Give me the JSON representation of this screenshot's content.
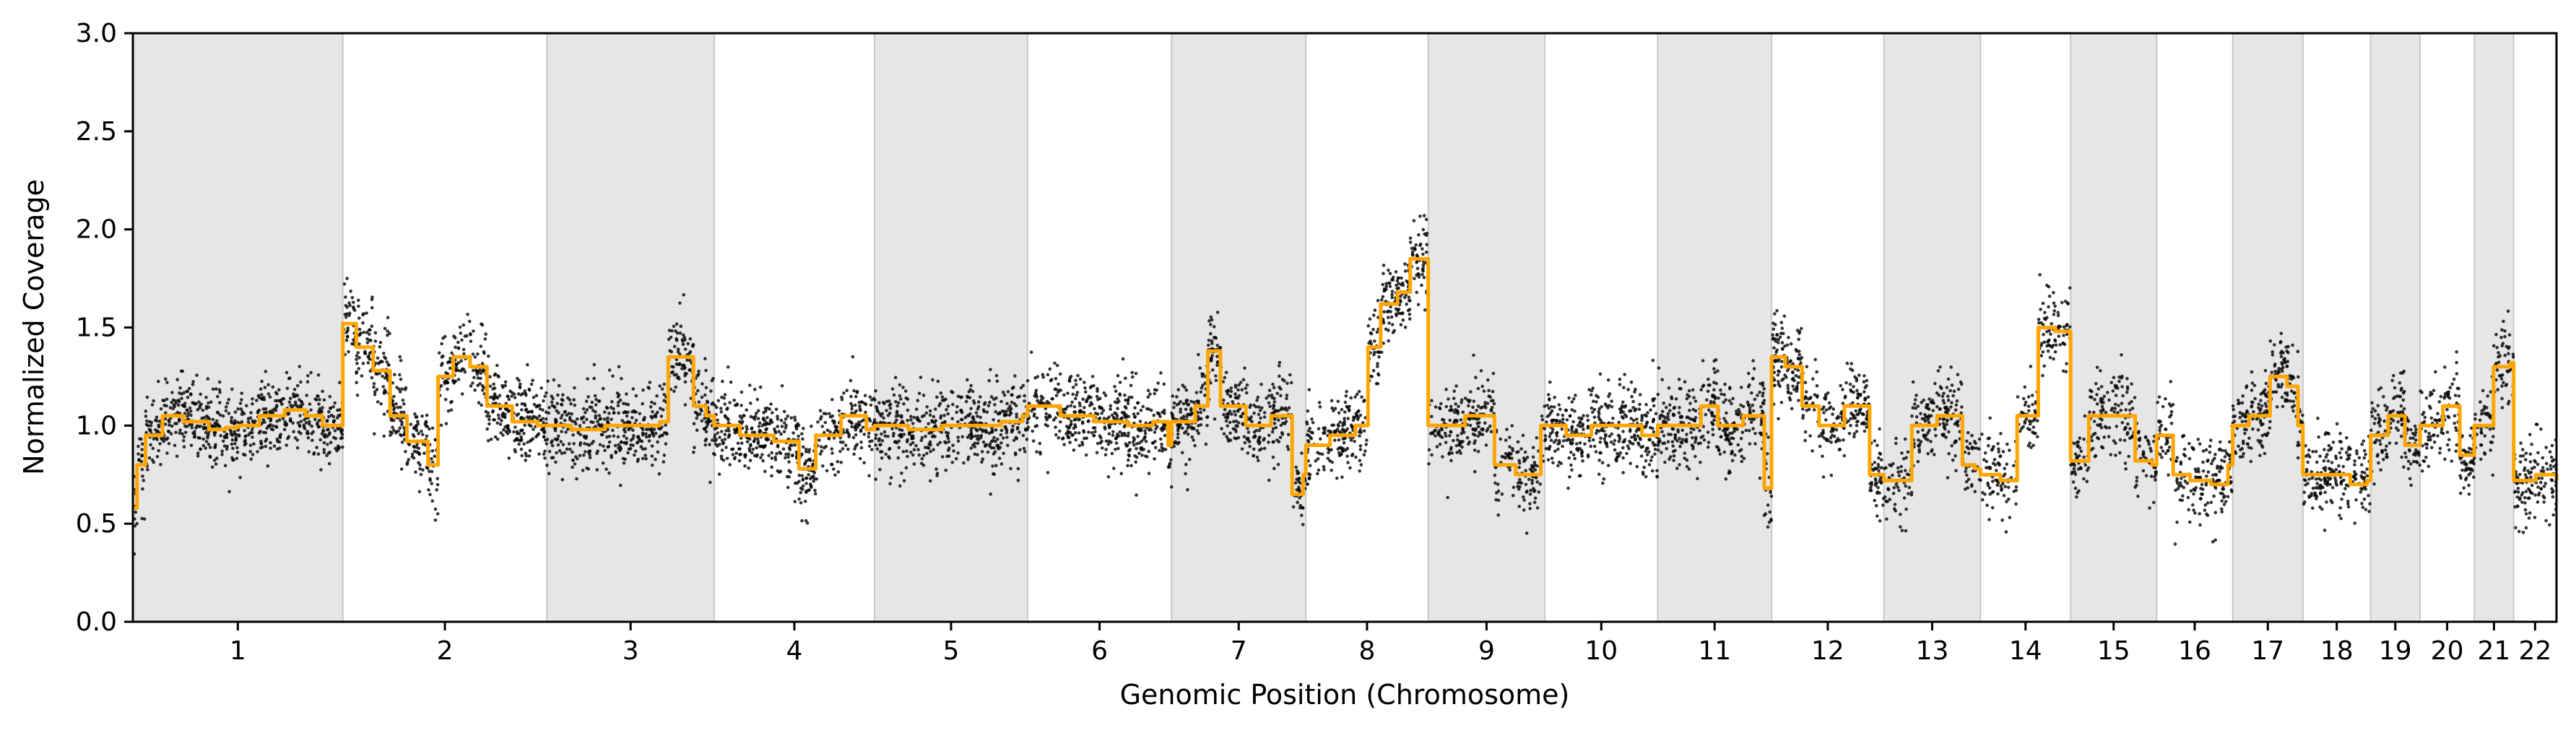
{
  "chart_data": {
    "type": "scatter",
    "title": "",
    "xlabel": "Genomic Position (Chromosome)",
    "ylabel": "Normalized Coverage",
    "ylim": [
      0.0,
      3.0
    ],
    "y_ticks": [
      "0.0",
      "0.5",
      "1.0",
      "1.5",
      "2.0",
      "2.5",
      "3.0"
    ],
    "chromosomes": [
      {
        "label": "1",
        "start": 0.0,
        "end": 249.0
      },
      {
        "label": "2",
        "start": 249.0,
        "end": 491.2
      },
      {
        "label": "3",
        "start": 491.2,
        "end": 689.5
      },
      {
        "label": "4",
        "start": 689.5,
        "end": 879.7
      },
      {
        "label": "5",
        "start": 879.7,
        "end": 1061.2
      },
      {
        "label": "6",
        "start": 1061.2,
        "end": 1232.0
      },
      {
        "label": "7",
        "start": 1232.0,
        "end": 1391.3
      },
      {
        "label": "8",
        "start": 1391.3,
        "end": 1536.4
      },
      {
        "label": "9",
        "start": 1536.4,
        "end": 1674.8
      },
      {
        "label": "10",
        "start": 1674.8,
        "end": 1808.6
      },
      {
        "label": "11",
        "start": 1808.6,
        "end": 1943.7
      },
      {
        "label": "12",
        "start": 1943.7,
        "end": 2077.0
      },
      {
        "label": "13",
        "start": 2077.0,
        "end": 2191.4
      },
      {
        "label": "14",
        "start": 2191.4,
        "end": 2298.4
      },
      {
        "label": "15",
        "start": 2298.4,
        "end": 2400.4
      },
      {
        "label": "16",
        "start": 2400.4,
        "end": 2490.7
      },
      {
        "label": "17",
        "start": 2490.7,
        "end": 2573.9
      },
      {
        "label": "18",
        "start": 2573.9,
        "end": 2654.2
      },
      {
        "label": "19",
        "start": 2654.2,
        "end": 2712.8
      },
      {
        "label": "20",
        "start": 2712.8,
        "end": 2777.2
      },
      {
        "label": "21",
        "start": 2777.2,
        "end": 2823.9
      },
      {
        "label": "22",
        "start": 2823.9,
        "end": 2874.7
      }
    ],
    "shading": "alternating grey bands on odd chromosomes",
    "series": [
      {
        "kind": "points",
        "color": "#000000",
        "spread": 0.17,
        "points_per_chromosome": [
          660,
          640,
          520,
          500,
          480,
          450,
          420,
          380,
          300,
          360,
          360,
          360,
          240,
          220,
          210,
          200,
          210,
          200,
          150,
          160,
          100,
          130
        ]
      },
      {
        "kind": "segments",
        "color": "#FFA500",
        "values": [
          [
            0.0,
            0.58
          ],
          [
            5.0,
            0.8
          ],
          [
            15.0,
            0.95
          ],
          [
            35.0,
            1.05
          ],
          [
            60.0,
            1.02
          ],
          [
            90.0,
            0.98
          ],
          [
            110.0,
            0.99
          ],
          [
            125.0,
            1.0
          ],
          [
            150.0,
            1.05
          ],
          [
            180.0,
            1.08
          ],
          [
            205.0,
            1.05
          ],
          [
            225.0,
            1.0
          ],
          [
            245.0,
            1.0
          ],
          [
            249.0,
            1.52
          ],
          [
            265.0,
            1.4
          ],
          [
            285.0,
            1.28
          ],
          [
            305.0,
            1.05
          ],
          [
            325.0,
            0.92
          ],
          [
            350.0,
            0.8
          ],
          [
            362.0,
            1.25
          ],
          [
            380.0,
            1.35
          ],
          [
            400.0,
            1.3
          ],
          [
            420.0,
            1.1
          ],
          [
            450.0,
            1.02
          ],
          [
            480.0,
            1.0
          ],
          [
            491.2,
            1.0
          ],
          [
            520.0,
            0.98
          ],
          [
            560.0,
            1.0
          ],
          [
            600.0,
            1.0
          ],
          [
            625.0,
            1.02
          ],
          [
            635.0,
            1.35
          ],
          [
            650.0,
            1.35
          ],
          [
            665.0,
            1.1
          ],
          [
            680.0,
            1.05
          ],
          [
            689.5,
            1.0
          ],
          [
            720.0,
            0.95
          ],
          [
            760.0,
            0.92
          ],
          [
            790.0,
            0.78
          ],
          [
            810.0,
            0.95
          ],
          [
            840.0,
            1.05
          ],
          [
            870.0,
            0.98
          ],
          [
            879.7,
            1.0
          ],
          [
            920.0,
            0.98
          ],
          [
            960.0,
            1.0
          ],
          [
            1000.0,
            1.0
          ],
          [
            1030.0,
            1.02
          ],
          [
            1055.0,
            1.05
          ],
          [
            1061.2,
            1.1
          ],
          [
            1100.0,
            1.05
          ],
          [
            1140.0,
            1.02
          ],
          [
            1180.0,
            1.0
          ],
          [
            1210.0,
            1.02
          ],
          [
            1228.0,
            0.9
          ],
          [
            1232.0,
            1.02
          ],
          [
            1260.0,
            1.1
          ],
          [
            1275.0,
            1.38
          ],
          [
            1290.0,
            1.1
          ],
          [
            1320.0,
            1.0
          ],
          [
            1350.0,
            1.05
          ],
          [
            1375.0,
            0.65
          ],
          [
            1388.0,
            0.75
          ],
          [
            1391.3,
            0.9
          ],
          [
            1420.0,
            0.95
          ],
          [
            1450.0,
            1.0
          ],
          [
            1465.0,
            1.4
          ],
          [
            1480.0,
            1.62
          ],
          [
            1500.0,
            1.68
          ],
          [
            1515.0,
            1.85
          ],
          [
            1530.0,
            1.85
          ],
          [
            1536.4,
            1.0
          ],
          [
            1560.0,
            1.0
          ],
          [
            1580.0,
            1.05
          ],
          [
            1600.0,
            1.05
          ],
          [
            1615.0,
            0.8
          ],
          [
            1640.0,
            0.75
          ],
          [
            1660.0,
            0.75
          ],
          [
            1670.0,
            1.0
          ],
          [
            1674.8,
            1.0
          ],
          [
            1700.0,
            0.95
          ],
          [
            1730.0,
            1.0
          ],
          [
            1760.0,
            1.0
          ],
          [
            1790.0,
            0.95
          ],
          [
            1808.6,
            1.0
          ],
          [
            1840.0,
            1.0
          ],
          [
            1860.0,
            1.1
          ],
          [
            1880.0,
            1.0
          ],
          [
            1910.0,
            1.05
          ],
          [
            1935.0,
            0.68
          ],
          [
            1943.7,
            1.35
          ],
          [
            1960.0,
            1.3
          ],
          [
            1980.0,
            1.1
          ],
          [
            2000.0,
            1.0
          ],
          [
            2030.0,
            1.1
          ],
          [
            2060.0,
            0.75
          ],
          [
            2077.0,
            0.72
          ],
          [
            2110.0,
            1.0
          ],
          [
            2140.0,
            1.05
          ],
          [
            2170.0,
            0.8
          ],
          [
            2185.0,
            0.78
          ],
          [
            2191.4,
            0.75
          ],
          [
            2215.0,
            0.72
          ],
          [
            2235.0,
            1.05
          ],
          [
            2260.0,
            1.5
          ],
          [
            2280.0,
            1.48
          ],
          [
            2290.0,
            1.48
          ],
          [
            2298.4,
            0.82
          ],
          [
            2320.0,
            1.05
          ],
          [
            2350.0,
            1.05
          ],
          [
            2375.0,
            0.82
          ],
          [
            2395.0,
            0.8
          ],
          [
            2400.4,
            0.95
          ],
          [
            2420.0,
            0.75
          ],
          [
            2440.0,
            0.72
          ],
          [
            2465.0,
            0.7
          ],
          [
            2485.0,
            0.8
          ],
          [
            2490.7,
            1.0
          ],
          [
            2510.0,
            1.05
          ],
          [
            2535.0,
            1.25
          ],
          [
            2555.0,
            1.2
          ],
          [
            2568.0,
            1.0
          ],
          [
            2573.9,
            0.75
          ],
          [
            2600.0,
            0.75
          ],
          [
            2630.0,
            0.7
          ],
          [
            2650.0,
            0.72
          ],
          [
            2654.2,
            0.95
          ],
          [
            2675.0,
            1.05
          ],
          [
            2695.0,
            0.9
          ],
          [
            2708.0,
            0.9
          ],
          [
            2712.8,
            1.0
          ],
          [
            2740.0,
            1.1
          ],
          [
            2760.0,
            0.85
          ],
          [
            2775.0,
            0.85
          ],
          [
            2777.2,
            1.0
          ],
          [
            2800.0,
            1.3
          ],
          [
            2820.0,
            1.32
          ],
          [
            2823.9,
            0.72
          ],
          [
            2850.0,
            0.75
          ],
          [
            2874.7,
            0.72
          ]
        ]
      }
    ],
    "grid": false,
    "legend": "none"
  }
}
